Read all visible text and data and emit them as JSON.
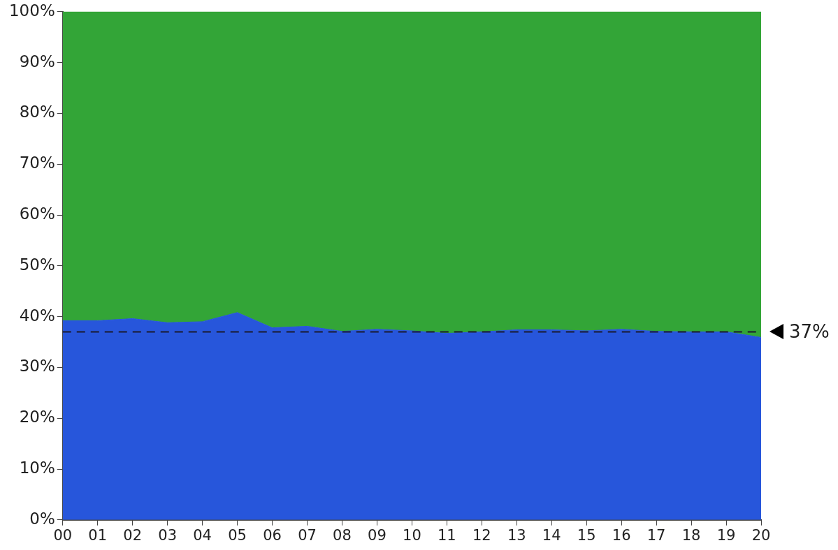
{
  "chart_data": {
    "type": "area",
    "stacked": true,
    "legend": false,
    "grid": false,
    "categories": [
      "00",
      "01",
      "02",
      "03",
      "04",
      "05",
      "06",
      "07",
      "08",
      "09",
      "10",
      "11",
      "12",
      "13",
      "14",
      "15",
      "16",
      "17",
      "18",
      "19",
      "20"
    ],
    "series": [
      {
        "color": "#2756db",
        "values": [
          39.2,
          39.2,
          39.6,
          38.8,
          39.0,
          40.8,
          37.8,
          38.1,
          37.1,
          37.5,
          37.2,
          36.7,
          37.0,
          37.4,
          37.4,
          37.2,
          37.5,
          37.1,
          37.0,
          37.0,
          35.9
        ]
      },
      {
        "color": "#33a537",
        "values": [
          60.8,
          60.8,
          60.4,
          61.2,
          61.0,
          59.2,
          62.2,
          61.9,
          62.9,
          62.5,
          62.8,
          63.3,
          63.0,
          62.6,
          62.6,
          62.8,
          62.5,
          62.9,
          63.0,
          63.0,
          64.1
        ]
      }
    ],
    "ylim": [
      0,
      100
    ],
    "yticks": [
      {
        "value": 0,
        "label": "0%"
      },
      {
        "value": 10,
        "label": "10%"
      },
      {
        "value": 20,
        "label": "20%"
      },
      {
        "value": 30,
        "label": "30%"
      },
      {
        "value": 40,
        "label": "40%"
      },
      {
        "value": 50,
        "label": "50%"
      },
      {
        "value": 60,
        "label": "60%"
      },
      {
        "value": 70,
        "label": "70%"
      },
      {
        "value": 80,
        "label": "80%"
      },
      {
        "value": 90,
        "label": "90%"
      },
      {
        "value": 100,
        "label": "100%"
      }
    ],
    "ref_lines": [
      {
        "axis": "y",
        "value": 37,
        "label": "37%",
        "color": "#1a1a2e",
        "line_style": "dashed"
      }
    ]
  }
}
